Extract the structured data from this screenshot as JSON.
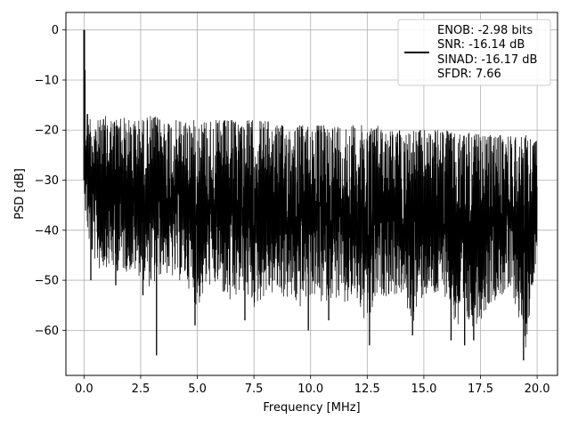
{
  "chart_data": {
    "type": "line",
    "title": "",
    "xlabel": "Frequency [MHz]",
    "ylabel": "PSD [dB]",
    "xlim": [
      -0.8,
      20.9
    ],
    "ylim": [
      -69,
      3.5
    ],
    "xticks": [
      0.0,
      2.5,
      5.0,
      7.5,
      10.0,
      12.5,
      15.0,
      17.5,
      20.0
    ],
    "xtick_labels": [
      "0.0",
      "2.5",
      "5.0",
      "7.5",
      "10.0",
      "12.5",
      "15.0",
      "17.5",
      "20.0"
    ],
    "yticks": [
      0,
      -10,
      -20,
      -30,
      -40,
      -50,
      -60
    ],
    "ytick_labels": [
      "0",
      "−10",
      "−20",
      "−30",
      "−40",
      "−50",
      "−60"
    ],
    "grid": true,
    "legend_position": "top-right",
    "legend_lines": [
      "ENOB: -2.98 bits",
      "SNR: -16.14 dB",
      "SINAD: -16.17 dB",
      "SFDR: 7.66"
    ],
    "series": [
      {
        "color": "#000000",
        "x": [
          0.0,
          0.02,
          0.05,
          0.1,
          0.2,
          0.35,
          0.5,
          0.7,
          1.0,
          1.3,
          1.6,
          2.0,
          2.5,
          3.0,
          3.5,
          4.0,
          4.5,
          5.0,
          5.5,
          6.0,
          6.5,
          7.0,
          7.5,
          8.0,
          8.5,
          9.0,
          9.5,
          10.0,
          10.5,
          11.0,
          11.5,
          12.0,
          12.5,
          13.0,
          13.5,
          14.0,
          14.5,
          15.0,
          15.5,
          16.0,
          16.5,
          17.0,
          17.5,
          18.0,
          18.5,
          19.0,
          19.5,
          20.0
        ],
        "y_upper": [
          0,
          -12,
          -14,
          -15,
          -17,
          -17,
          -18,
          -18,
          -17,
          -18,
          -17,
          -18,
          -18,
          -17,
          -18,
          -18,
          -18,
          -18,
          -18,
          -18,
          -18,
          -18,
          -18,
          -18,
          -19,
          -19,
          -19,
          -19,
          -19,
          -19,
          -19,
          -19,
          -19,
          -19,
          -20,
          -20,
          -20,
          -20,
          -20,
          -20,
          -21,
          -20,
          -21,
          -21,
          -21,
          -21,
          -21,
          -22
        ],
        "y_lower": [
          -28,
          -33,
          -38,
          -40,
          -44,
          -47,
          -48,
          -50,
          -49,
          -50,
          -50,
          -50,
          -51,
          -54,
          -50,
          -52,
          -52,
          -58,
          -53,
          -54,
          -58,
          -54,
          -58,
          -55,
          -55,
          -56,
          -58,
          -55,
          -57,
          -55,
          -58,
          -56,
          -63,
          -55,
          -55,
          -55,
          -61,
          -55,
          -56,
          -55,
          -63,
          -62,
          -60,
          -56,
          -55,
          -56,
          -66,
          -45
        ],
        "spikes": [
          {
            "x": 0.02,
            "y": 0
          },
          {
            "x": 0.04,
            "y": -8
          },
          {
            "x": 0.3,
            "y": -50
          },
          {
            "x": 3.2,
            "y": -65
          },
          {
            "x": 1.4,
            "y": -51
          },
          {
            "x": 2.6,
            "y": -53
          },
          {
            "x": 4.9,
            "y": -59
          },
          {
            "x": 7.1,
            "y": -58
          },
          {
            "x": 9.9,
            "y": -60
          },
          {
            "x": 10.8,
            "y": -58
          },
          {
            "x": 12.6,
            "y": -63
          },
          {
            "x": 14.5,
            "y": -61
          },
          {
            "x": 16.2,
            "y": -62
          },
          {
            "x": 16.8,
            "y": -63
          },
          {
            "x": 17.2,
            "y": -62
          },
          {
            "x": 19.4,
            "y": -66
          }
        ]
      }
    ]
  }
}
